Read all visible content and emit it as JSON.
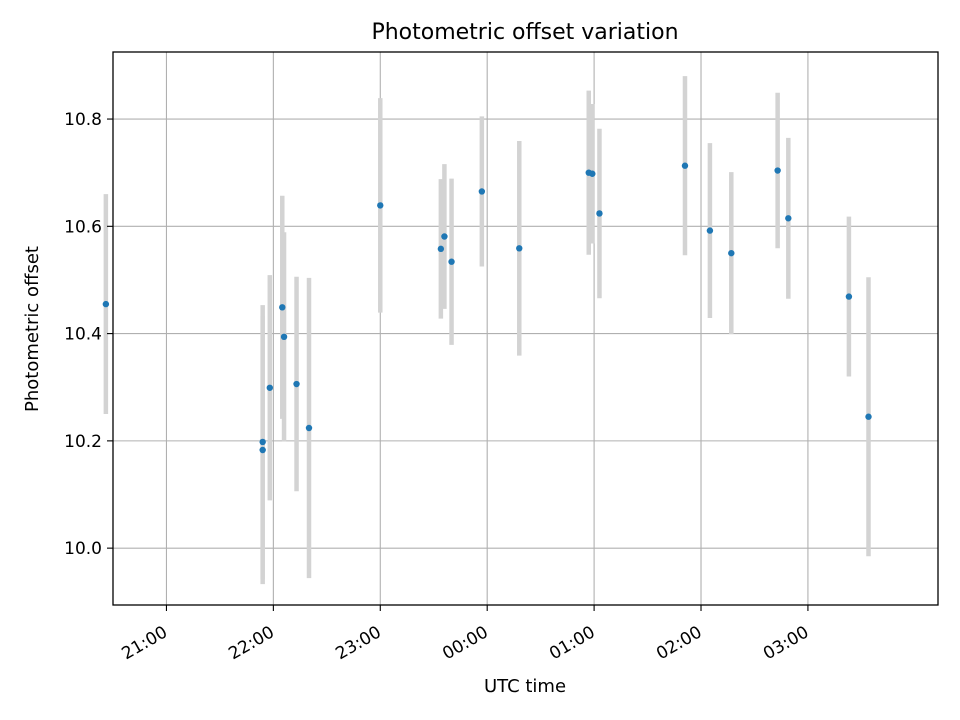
{
  "chart_data": {
    "type": "scatter",
    "title": "Photometric offset variation",
    "xlabel": "UTC time",
    "ylabel": "Photometric offset",
    "x_unit": "UTC clock time (hours, continuing past midnight)",
    "xlim": [
      "20:30",
      "04:13"
    ],
    "ylim": [
      9.894,
      10.925
    ],
    "x_ticks": [
      "21:00",
      "22:00",
      "23:00",
      "00:00",
      "01:00",
      "02:00",
      "03:00"
    ],
    "y_ticks": [
      "10.0",
      "10.2",
      "10.4",
      "10.6",
      "10.8"
    ],
    "grid": true,
    "marker_color": "#1f77b4",
    "errorbar_color": "#d3d3d3",
    "points": [
      {
        "time": "20:26",
        "value": 10.455,
        "err": 0.205
      },
      {
        "time": "21:54",
        "value": 10.198,
        "err": 0.255
      },
      {
        "time": "21:54",
        "value": 10.183,
        "err": 0.25
      },
      {
        "time": "21:58",
        "value": 10.299,
        "err": 0.21
      },
      {
        "time": "22:05",
        "value": 10.449,
        "err": 0.208
      },
      {
        "time": "22:06",
        "value": 10.394,
        "err": 0.195
      },
      {
        "time": "22:13",
        "value": 10.306,
        "err": 0.2
      },
      {
        "time": "22:20",
        "value": 10.224,
        "err": 0.28
      },
      {
        "time": "23:00",
        "value": 10.639,
        "err": 0.2
      },
      {
        "time": "23:34",
        "value": 10.558,
        "err": 0.13
      },
      {
        "time": "23:36",
        "value": 10.581,
        "err": 0.135
      },
      {
        "time": "23:40",
        "value": 10.534,
        "err": 0.155
      },
      {
        "time": "23:57",
        "value": 10.665,
        "err": 0.14
      },
      {
        "time": "00:18",
        "value": 10.559,
        "err": 0.2
      },
      {
        "time": "00:57",
        "value": 10.7,
        "err": 0.153
      },
      {
        "time": "00:59",
        "value": 10.698,
        "err": 0.13
      },
      {
        "time": "01:03",
        "value": 10.624,
        "err": 0.158
      },
      {
        "time": "01:51",
        "value": 10.713,
        "err": 0.167
      },
      {
        "time": "02:05",
        "value": 10.592,
        "err": 0.163
      },
      {
        "time": "02:17",
        "value": 10.55,
        "err": 0.151
      },
      {
        "time": "02:43",
        "value": 10.704,
        "err": 0.145
      },
      {
        "time": "02:49",
        "value": 10.615,
        "err": 0.15
      },
      {
        "time": "03:23",
        "value": 10.469,
        "err": 0.149
      },
      {
        "time": "03:34",
        "value": 10.245,
        "err": 0.26
      }
    ]
  }
}
